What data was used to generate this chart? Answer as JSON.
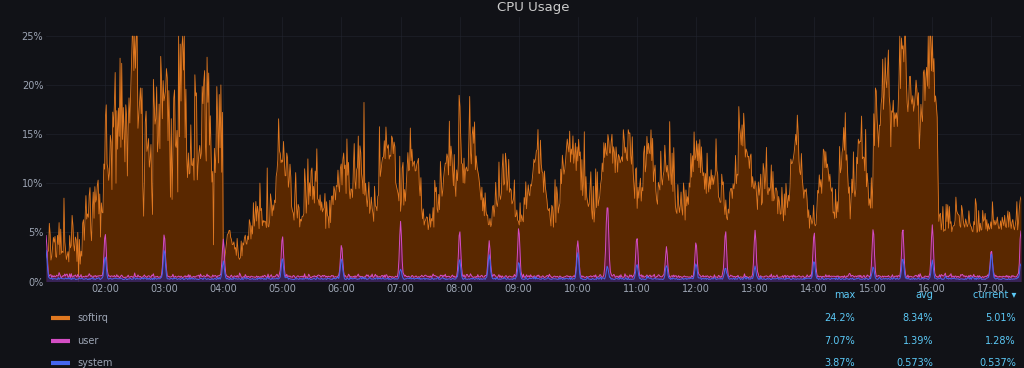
{
  "title": "CPU Usage",
  "background_color": "#111217",
  "plot_bg_color": "#111217",
  "grid_color": "#222530",
  "text_color": "#9da5b4",
  "title_color": "#cccccc",
  "x_tick_labels": [
    "02:00",
    "03:00",
    "04:00",
    "05:00",
    "06:00",
    "07:00",
    "08:00",
    "09:00",
    "10:00",
    "11:00",
    "12:00",
    "13:00",
    "14:00",
    "15:00",
    "16:00",
    "17:00"
  ],
  "y_tick_labels": [
    "0%",
    "5%",
    "10%",
    "15%",
    "20%",
    "25%"
  ],
  "y_tick_values": [
    0,
    5,
    10,
    15,
    20,
    25
  ],
  "ylim": [
    0,
    27
  ],
  "series": {
    "softirq": {
      "color": "#e07820",
      "fill_color": "#5a2800",
      "label": "softirq",
      "max": "24.2%",
      "avg": "8.34%",
      "current": "5.01%"
    },
    "user": {
      "color": "#d44ec4",
      "fill_color": "#6a1060",
      "label": "user",
      "max": "7.07%",
      "avg": "1.39%",
      "current": "1.28%"
    },
    "system": {
      "color": "#4466ee",
      "fill_color": "#1a2a6a",
      "label": "system",
      "max": "3.87%",
      "avg": "0.573%",
      "current": "0.537%"
    }
  },
  "cyan": "#5bc8f5"
}
